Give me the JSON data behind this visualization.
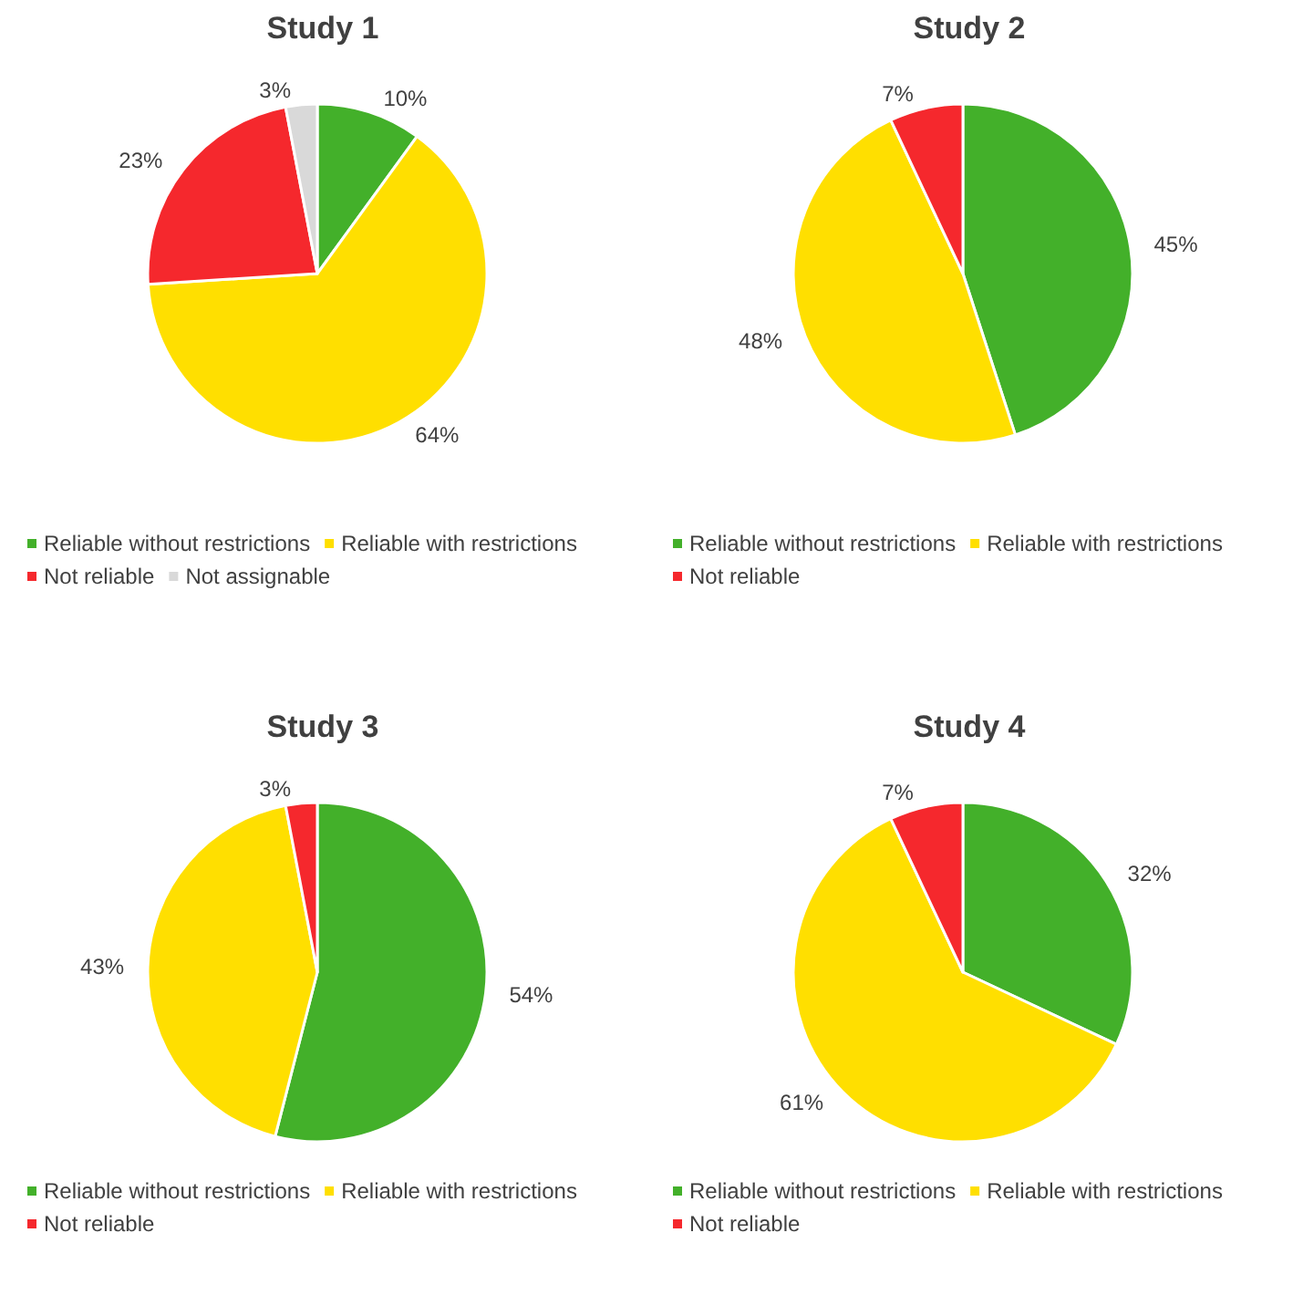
{
  "chart_data": [
    {
      "type": "pie",
      "title": "Study 1",
      "categories": [
        "Reliable without restrictions",
        "Reliable with restrictions",
        "Not reliable",
        "Not assignable"
      ],
      "values": [
        10,
        64,
        23,
        3
      ],
      "value_labels": [
        "10%",
        "64%",
        "23%",
        "3%"
      ],
      "colors": [
        "#43b02a",
        "#ffdf00",
        "#f5282d",
        "#d9d9d9"
      ],
      "legend": "bottom"
    },
    {
      "type": "pie",
      "title": "Study 2",
      "categories": [
        "Reliable without restrictions",
        "Reliable with restrictions",
        "Not reliable"
      ],
      "values": [
        45,
        48,
        7
      ],
      "value_labels": [
        "45%",
        "48%",
        "7%"
      ],
      "colors": [
        "#43b02a",
        "#ffdf00",
        "#f5282d"
      ],
      "legend": "bottom"
    },
    {
      "type": "pie",
      "title": "Study 3",
      "categories": [
        "Reliable without restrictions",
        "Reliable with restrictions",
        "Not reliable"
      ],
      "values": [
        54,
        43,
        3
      ],
      "value_labels": [
        "54%",
        "43%",
        "3%"
      ],
      "colors": [
        "#43b02a",
        "#ffdf00",
        "#f5282d"
      ],
      "legend": "bottom"
    },
    {
      "type": "pie",
      "title": "Study 4",
      "categories": [
        "Reliable without restrictions",
        "Reliable with restrictions",
        "Not reliable"
      ],
      "values": [
        32,
        61,
        7
      ],
      "value_labels": [
        "32%",
        "61%",
        "7%"
      ],
      "colors": [
        "#43b02a",
        "#ffdf00",
        "#f5282d"
      ],
      "legend": "bottom"
    }
  ]
}
